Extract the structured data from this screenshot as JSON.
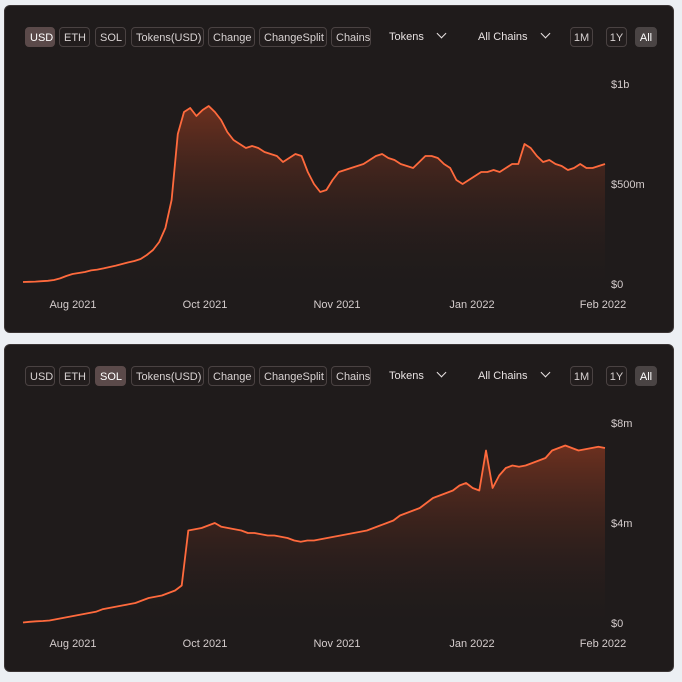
{
  "panels": [
    {
      "buttons": [
        "USD",
        "ETH",
        "SOL",
        "Tokens(USD)",
        "Change",
        "ChangeSplit",
        "Chains"
      ],
      "active_button": "USD",
      "dropdowns": [
        "Tokens",
        "All Chains"
      ],
      "ranges": [
        "1M",
        "1Y",
        "All"
      ],
      "active_range": "All"
    },
    {
      "buttons": [
        "USD",
        "ETH",
        "SOL",
        "Tokens(USD)",
        "Change",
        "ChangeSplit",
        "Chains"
      ],
      "active_button": "SOL",
      "dropdowns": [
        "Tokens",
        "All Chains"
      ],
      "ranges": [
        "1M",
        "1Y",
        "All"
      ],
      "active_range": "All"
    }
  ],
  "colors": {
    "line": "#ff6a3d",
    "area_top": "#7a3420",
    "panel_bg": "#1f1b1b"
  },
  "chart_data": [
    {
      "type": "area",
      "x_tick_labels": [
        "Aug 2021",
        "Oct 2021",
        "Nov 2021",
        "Jan 2022",
        "Feb 2022"
      ],
      "y_tick_labels": [
        "$1b",
        "$500m",
        "$0"
      ],
      "y_tick_values": [
        1000,
        500,
        0
      ],
      "ylim": [
        0,
        1000
      ],
      "y_unit": "millions USD",
      "series": [
        {
          "values": [
            10,
            11,
            12,
            14,
            16,
            20,
            28,
            40,
            50,
            55,
            60,
            68,
            72,
            78,
            85,
            92,
            100,
            108,
            115,
            125,
            145,
            170,
            210,
            280,
            420,
            750,
            860,
            880,
            840,
            870,
            890,
            860,
            820,
            760,
            720,
            700,
            680,
            690,
            680,
            660,
            650,
            640,
            610,
            630,
            650,
            640,
            560,
            500,
            460,
            470,
            520,
            560,
            570,
            580,
            590,
            600,
            620,
            640,
            650,
            630,
            620,
            600,
            590,
            580,
            610,
            640,
            640,
            630,
            600,
            580,
            520,
            500,
            520,
            540,
            560,
            560,
            570,
            560,
            580,
            600,
            600,
            700,
            680,
            640,
            610,
            620,
            600,
            590,
            570,
            580,
            600,
            580,
            580,
            590,
            600
          ]
        }
      ]
    },
    {
      "type": "area",
      "x_tick_labels": [
        "Aug 2021",
        "Oct 2021",
        "Nov 2021",
        "Jan 2022",
        "Feb 2022"
      ],
      "y_tick_labels": [
        "$8m",
        "$4m",
        "$0"
      ],
      "y_tick_values": [
        8,
        4,
        0
      ],
      "ylim": [
        0,
        8
      ],
      "y_unit": "millions",
      "series": [
        {
          "values": [
            0.02,
            0.05,
            0.07,
            0.08,
            0.1,
            0.15,
            0.2,
            0.25,
            0.3,
            0.35,
            0.4,
            0.45,
            0.55,
            0.6,
            0.65,
            0.7,
            0.75,
            0.8,
            0.9,
            1.0,
            1.05,
            1.1,
            1.2,
            1.3,
            1.5,
            3.7,
            3.75,
            3.8,
            3.9,
            4.0,
            3.85,
            3.8,
            3.75,
            3.7,
            3.6,
            3.6,
            3.55,
            3.5,
            3.5,
            3.45,
            3.4,
            3.3,
            3.25,
            3.3,
            3.3,
            3.35,
            3.4,
            3.45,
            3.5,
            3.55,
            3.6,
            3.65,
            3.7,
            3.8,
            3.9,
            4.0,
            4.1,
            4.3,
            4.4,
            4.5,
            4.6,
            4.8,
            5.0,
            5.1,
            5.2,
            5.3,
            5.5,
            5.6,
            5.4,
            5.3,
            6.9,
            5.4,
            5.9,
            6.2,
            6.3,
            6.25,
            6.3,
            6.4,
            6.5,
            6.6,
            6.9,
            7.0,
            7.1,
            7.0,
            6.9,
            6.95,
            7.0,
            7.05,
            7.0
          ]
        }
      ]
    }
  ]
}
